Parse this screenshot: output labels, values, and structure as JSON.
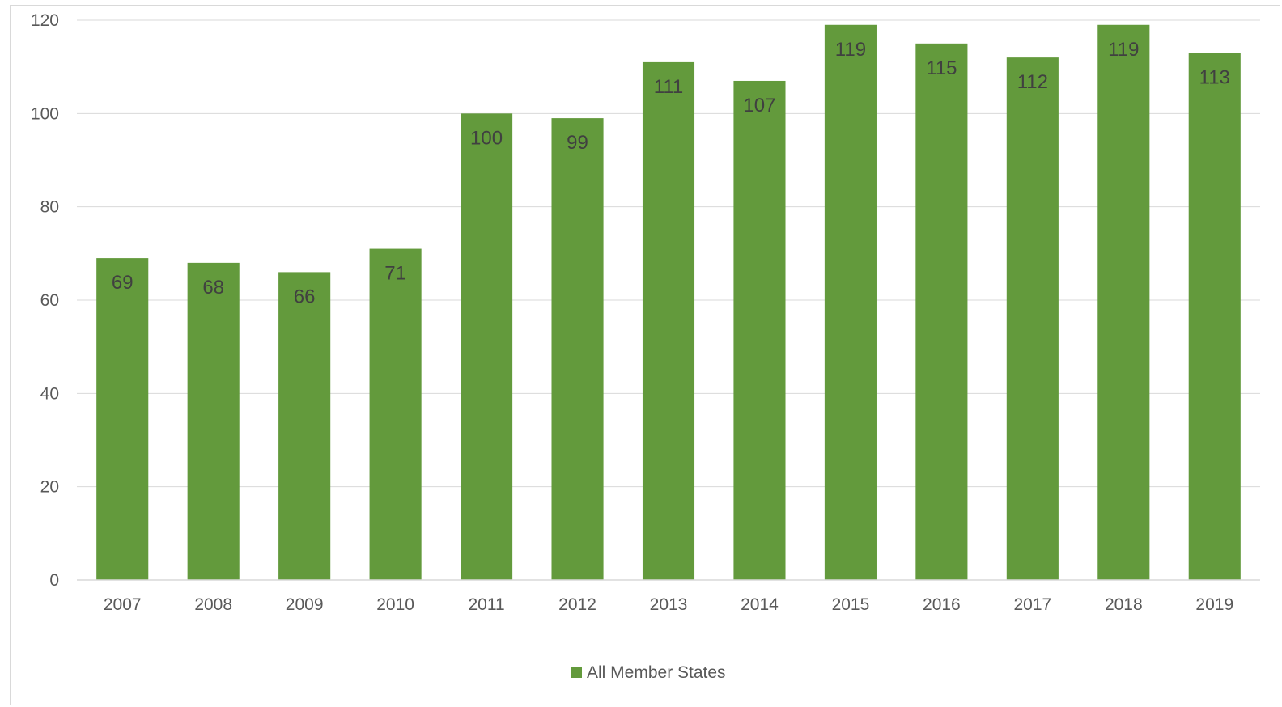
{
  "chart_data": {
    "type": "bar",
    "title": "",
    "xlabel": "",
    "ylabel": "",
    "categories": [
      "2007",
      "2008",
      "2009",
      "2010",
      "2011",
      "2012",
      "2013",
      "2014",
      "2015",
      "2016",
      "2017",
      "2018",
      "2019"
    ],
    "series": [
      {
        "name": "All Member States",
        "color": "#639a3c",
        "values": [
          69,
          68,
          66,
          71,
          100,
          99,
          111,
          107,
          119,
          115,
          112,
          119,
          113
        ]
      }
    ],
    "ylim": [
      0,
      120
    ],
    "yticks": [
      "0",
      "20",
      "40",
      "60",
      "80",
      "100",
      "120"
    ],
    "grid": true,
    "data_labels": true,
    "data_label_position": "inside-top",
    "legend_position": "bottom-center"
  }
}
